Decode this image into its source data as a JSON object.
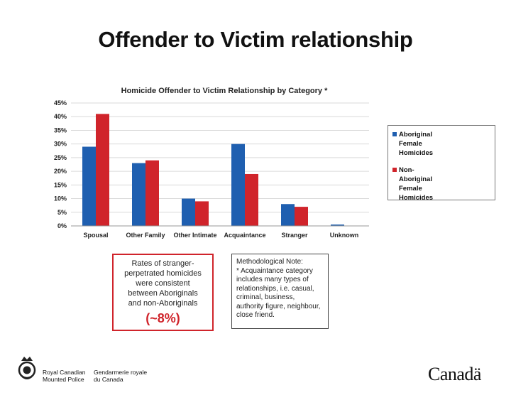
{
  "slide": {
    "title": "Offender to Victim relationship"
  },
  "colors": {
    "aboriginal": "#1f5fb0",
    "non_aboriginal": "#d0242b",
    "accent_red": "#d0242b"
  },
  "chart_data": {
    "type": "bar",
    "title": "Homicide Offender to Victim Relationship by Category *",
    "xlabel": "",
    "ylabel": "",
    "categories": [
      "Spousal",
      "Other Family",
      "Other Intimate",
      "Acquaintance",
      "Stranger",
      "Unknown"
    ],
    "series": [
      {
        "name": "Aboriginal Female Homicides",
        "values": [
          29,
          23,
          10,
          30,
          8,
          0.5
        ]
      },
      {
        "name": "Non-Aboriginal Female Homicides",
        "values": [
          41,
          24,
          9,
          19,
          7,
          0
        ]
      }
    ],
    "ylim": [
      0,
      45
    ],
    "yticks": [
      "0%",
      "5%",
      "10%",
      "15%",
      "20%",
      "25%",
      "30%",
      "35%",
      "40%",
      "45%"
    ],
    "grid": true,
    "legend_position": "right"
  },
  "legend": {
    "items": [
      {
        "label_lines": [
          "Aboriginal",
          "Female",
          "Homicides"
        ]
      },
      {
        "label_lines": [
          "Non-Aboriginal",
          "Female",
          "Homicides"
        ]
      }
    ]
  },
  "rates_box": {
    "lines": [
      "Rates of stranger-",
      "perpetrated homicides",
      "were consistent",
      "between Aboriginals",
      "and non-Aboriginals"
    ],
    "value": "(~8%)"
  },
  "note_box": {
    "title": "Methodological Note:",
    "lines": [
      "* Acquaintance category",
      "includes many types of",
      "relationships, i.e. casual,",
      "criminal, business,",
      "authority figure, neighbour,",
      "close friend."
    ]
  },
  "footer": {
    "en_lines": [
      "Royal Canadian",
      "Mounted Police"
    ],
    "fr_lines": [
      "Gendarmerie royale",
      "du Canada"
    ],
    "wordmark": "Canadä"
  }
}
